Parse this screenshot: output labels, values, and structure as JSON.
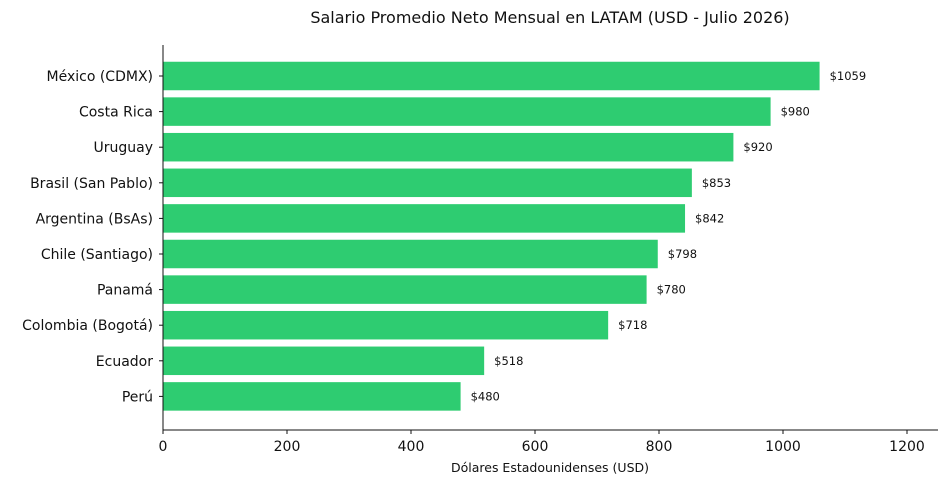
{
  "chart_data": {
    "type": "bar",
    "orientation": "horizontal",
    "title": "Salario Promedio Neto Mensual en LATAM (USD - Julio 2026)",
    "xlabel": "Dólares Estadounidenses (USD)",
    "ylabel": "",
    "xlim": [
      0,
      1250
    ],
    "xticks": [
      0,
      200,
      400,
      600,
      800,
      1000,
      1200
    ],
    "categories": [
      "México (CDMX)",
      "Costa Rica",
      "Uruguay",
      "Brasil (San Pablo)",
      "Argentina (BsAs)",
      "Chile (Santiago)",
      "Panamá",
      "Colombia (Bogotá)",
      "Ecuador",
      "Perú"
    ],
    "values": [
      1059,
      980,
      920,
      853,
      842,
      798,
      780,
      718,
      518,
      480
    ],
    "data_labels": [
      "$1059",
      "$980",
      "$920",
      "$853",
      "$842",
      "$798",
      "$780",
      "$718",
      "$518",
      "$480"
    ],
    "bar_color": "#2ecc71",
    "grid": false
  }
}
